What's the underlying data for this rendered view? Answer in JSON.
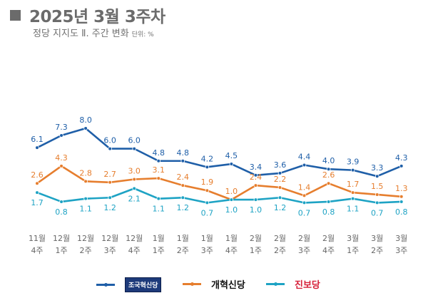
{
  "header": {
    "title": "2025년 3월 3주차",
    "subtitle": "정당 지지도 Ⅱ. 주간 변화",
    "unit": "단위: %"
  },
  "chart_data": {
    "type": "line",
    "title": "2025년 3월 3주차",
    "subtitle": "정당 지지도 Ⅱ. 주간 변화",
    "unit": "%",
    "categories": [
      [
        "11월",
        "4주"
      ],
      [
        "12월",
        "1주"
      ],
      [
        "12월",
        "2주"
      ],
      [
        "12월",
        "3주"
      ],
      [
        "12월",
        "4주"
      ],
      [
        "1월",
        "1주"
      ],
      [
        "1월",
        "2주"
      ],
      [
        "1월",
        "3주"
      ],
      [
        "1월",
        "4주"
      ],
      [
        "2월",
        "1주"
      ],
      [
        "2월",
        "2주"
      ],
      [
        "2월",
        "3주"
      ],
      [
        "2월",
        "4주"
      ],
      [
        "3월",
        "1주"
      ],
      [
        "3월",
        "2주"
      ],
      [
        "3월",
        "3주"
      ]
    ],
    "series": [
      {
        "name": "조국혁신당",
        "color": "#1f5fa8",
        "label_pos": "above",
        "values": [
          6.1,
          7.3,
          8.0,
          6.0,
          6.0,
          4.8,
          4.8,
          4.2,
          4.5,
          3.4,
          3.6,
          4.4,
          4.0,
          3.9,
          3.3,
          4.3
        ]
      },
      {
        "name": "개혁신당",
        "color": "#e67e2e",
        "label_pos": "above",
        "values": [
          2.6,
          4.3,
          2.8,
          2.7,
          3.0,
          3.1,
          2.4,
          1.9,
          1.0,
          2.4,
          2.2,
          1.4,
          2.6,
          1.7,
          1.5,
          1.3
        ]
      },
      {
        "name": "진보당",
        "color": "#1ea3c4",
        "label_pos": "below",
        "values": [
          1.7,
          0.8,
          1.1,
          1.2,
          2.1,
          1.1,
          1.2,
          0.7,
          1.0,
          1.0,
          1.2,
          0.7,
          0.8,
          1.1,
          0.7,
          0.8
        ]
      }
    ],
    "ylim": [
      0,
      8
    ],
    "grid": false,
    "legend": "bottom"
  },
  "legend": [
    {
      "label": "조국혁신당",
      "color": "#1f5fa8"
    },
    {
      "label": "개혁신당",
      "color": "#e67e2e"
    },
    {
      "label": "진보당",
      "color": "#1ea3c4"
    }
  ]
}
